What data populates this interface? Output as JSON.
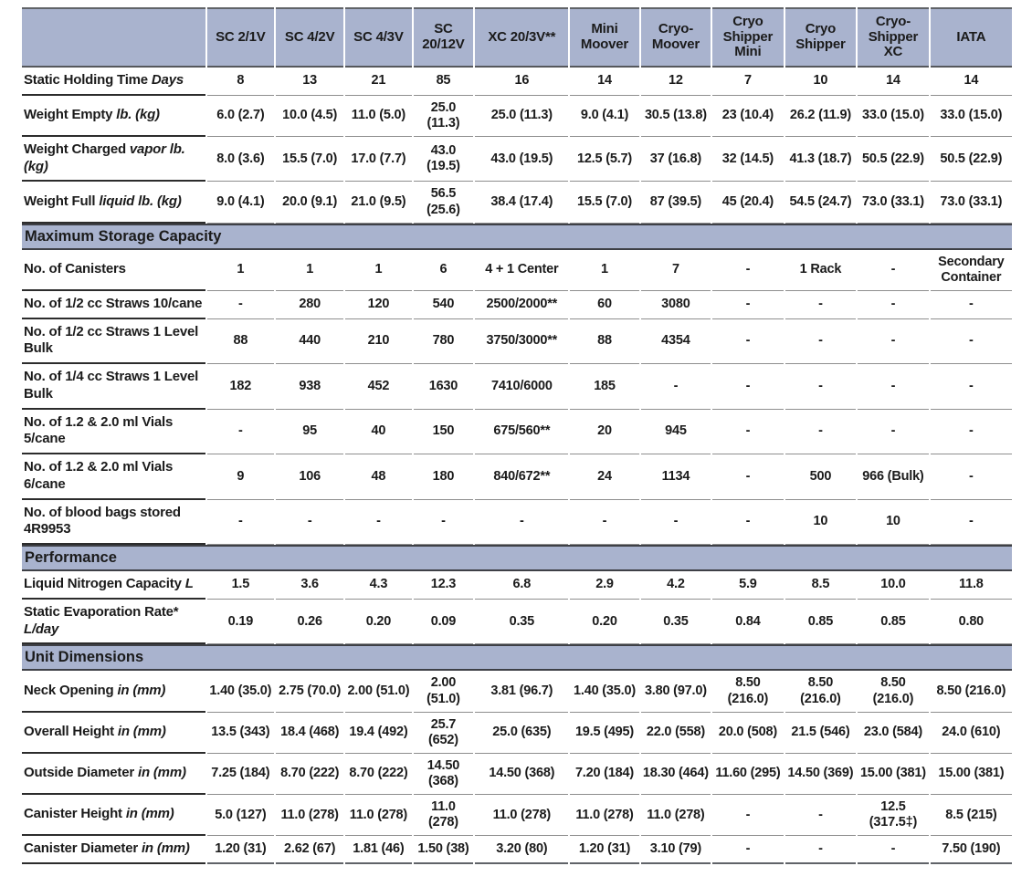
{
  "colors": {
    "band_bg": "#a9b3ce",
    "label_border": "#2c2c2c",
    "grid_line": "#8e8e8e",
    "text": "#1b1b1b"
  },
  "table": {
    "corner_label": "",
    "columns": [
      "SC 2/1V",
      "SC 4/2V",
      "SC 4/3V",
      "SC 20/12V",
      "XC 20/3V**",
      "Mini Moover",
      "Cryo-Moover",
      "Cryo Shipper Mini",
      "Cryo Shipper",
      "Cryo-Shipper XC",
      "IATA"
    ],
    "sections": [
      {
        "title": "",
        "rows": [
          {
            "label": "Static Holding Time",
            "label_italic": "Days",
            "values": [
              "8",
              "13",
              "21",
              "85",
              "16",
              "14",
              "12",
              "7",
              "10",
              "14",
              "14"
            ]
          },
          {
            "label": "Weight Empty",
            "label_italic": "lb. (kg)",
            "values": [
              "6.0 (2.7)",
              "10.0 (4.5)",
              "11.0 (5.0)",
              "25.0 (11.3)",
              "25.0 (11.3)",
              "9.0 (4.1)",
              "30.5 (13.8)",
              "23 (10.4)",
              "26.2 (11.9)",
              "33.0 (15.0)",
              "33.0 (15.0)"
            ]
          },
          {
            "label": "Weight Charged",
            "label_italic": "vapor lb. (kg)",
            "values": [
              "8.0 (3.6)",
              "15.5 (7.0)",
              "17.0 (7.7)",
              "43.0 (19.5)",
              "43.0 (19.5)",
              "12.5 (5.7)",
              "37 (16.8)",
              "32 (14.5)",
              "41.3 (18.7)",
              "50.5 (22.9)",
              "50.5 (22.9)"
            ]
          },
          {
            "label": "Weight Full",
            "label_italic": "liquid lb. (kg)",
            "values": [
              "9.0 (4.1)",
              "20.0 (9.1)",
              "21.0 (9.5)",
              "56.5 (25.6)",
              "38.4 (17.4)",
              "15.5 (7.0)",
              "87 (39.5)",
              "45 (20.4)",
              "54.5 (24.7)",
              "73.0 (33.1)",
              "73.0 (33.1)"
            ]
          }
        ]
      },
      {
        "title": "Maximum Storage Capacity",
        "rows": [
          {
            "label": "No. of Canisters",
            "label_italic": "",
            "values": [
              "1",
              "1",
              "1",
              "6",
              "4 + 1 Center",
              "1",
              "7",
              "-",
              "1 Rack",
              "-",
              "Secondary Container"
            ]
          },
          {
            "label": "No. of 1/2 cc Straws 10/cane",
            "label_italic": "",
            "values": [
              "-",
              "280",
              "120",
              "540",
              "2500/2000**",
              "60",
              "3080",
              "-",
              "-",
              "-",
              "-"
            ]
          },
          {
            "label": "No. of 1/2 cc Straws 1 Level Bulk",
            "label_italic": "",
            "values": [
              "88",
              "440",
              "210",
              "780",
              "3750/3000**",
              "88",
              "4354",
              "-",
              "-",
              "-",
              "-"
            ]
          },
          {
            "label": "No. of 1/4 cc Straws 1 Level Bulk",
            "label_italic": "",
            "values": [
              "182",
              "938",
              "452",
              "1630",
              "7410/6000",
              "185",
              "-",
              "-",
              "-",
              "-",
              "-"
            ]
          },
          {
            "label": "No. of 1.2 & 2.0 ml Vials 5/cane",
            "label_italic": "",
            "values": [
              "-",
              "95",
              "40",
              "150",
              "675/560**",
              "20",
              "945",
              "-",
              "-",
              "-",
              "-"
            ]
          },
          {
            "label": "No. of 1.2 & 2.0 ml Vials 6/cane",
            "label_italic": "",
            "values": [
              "9",
              "106",
              "48",
              "180",
              "840/672**",
              "24",
              "1134",
              "-",
              "500",
              "966 (Bulk)",
              "-"
            ]
          },
          {
            "label": "No. of blood bags stored 4R9953",
            "label_italic": "",
            "values": [
              "-",
              "-",
              "-",
              "-",
              "-",
              "-",
              "-",
              "-",
              "10",
              "10",
              "-"
            ]
          }
        ]
      },
      {
        "title": "Performance",
        "rows": [
          {
            "label": "Liquid Nitrogen Capacity",
            "label_italic": "L",
            "values": [
              "1.5",
              "3.6",
              "4.3",
              "12.3",
              "6.8",
              "2.9",
              "4.2",
              "5.9",
              "8.5",
              "10.0",
              "11.8"
            ]
          },
          {
            "label": "Static Evaporation Rate*",
            "label_italic": "L/day",
            "values": [
              "0.19",
              "0.26",
              "0.20",
              "0.09",
              "0.35",
              "0.20",
              "0.35",
              "0.84",
              "0.85",
              "0.85",
              "0.80"
            ]
          }
        ]
      },
      {
        "title": "Unit Dimensions",
        "rows": [
          {
            "label": "Neck Opening",
            "label_italic": "in (mm)",
            "values": [
              "1.40 (35.0)",
              "2.75 (70.0)",
              "2.00 (51.0)",
              "2.00 (51.0)",
              "3.81 (96.7)",
              "1.40 (35.0)",
              "3.80 (97.0)",
              "8.50 (216.0)",
              "8.50 (216.0)",
              "8.50 (216.0)",
              "8.50 (216.0)"
            ]
          },
          {
            "label": "Overall Height",
            "label_italic": "in (mm)",
            "values": [
              "13.5 (343)",
              "18.4 (468)",
              "19.4 (492)",
              "25.7 (652)",
              "25.0 (635)",
              "19.5 (495)",
              "22.0 (558)",
              "20.0 (508)",
              "21.5 (546)",
              "23.0 (584)",
              "24.0 (610)"
            ]
          },
          {
            "label": "Outside Diameter",
            "label_italic": "in (mm)",
            "values": [
              "7.25 (184)",
              "8.70 (222)",
              "8.70 (222)",
              "14.50 (368)",
              "14.50 (368)",
              "7.20 (184)",
              "18.30 (464)",
              "11.60 (295)",
              "14.50 (369)",
              "15.00 (381)",
              "15.00 (381)"
            ]
          },
          {
            "label": "Canister Height",
            "label_italic": "in (mm)",
            "values": [
              "5.0 (127)",
              "11.0 (278)",
              "11.0 (278)",
              "11.0 (278)",
              "11.0 (278)",
              "11.0 (278)",
              "11.0 (278)",
              "-",
              "-",
              "12.5 (317.5‡)",
              "8.5 (215)"
            ]
          },
          {
            "label": "Canister Diameter",
            "label_italic": "in (mm)",
            "values": [
              "1.20 (31)",
              "2.62 (67)",
              "1.81 (46)",
              "1.50 (38)",
              "3.20 (80)",
              "1.20 (31)",
              "3.10 (79)",
              "-",
              "-",
              "-",
              "7.50 (190)"
            ]
          }
        ]
      }
    ]
  }
}
